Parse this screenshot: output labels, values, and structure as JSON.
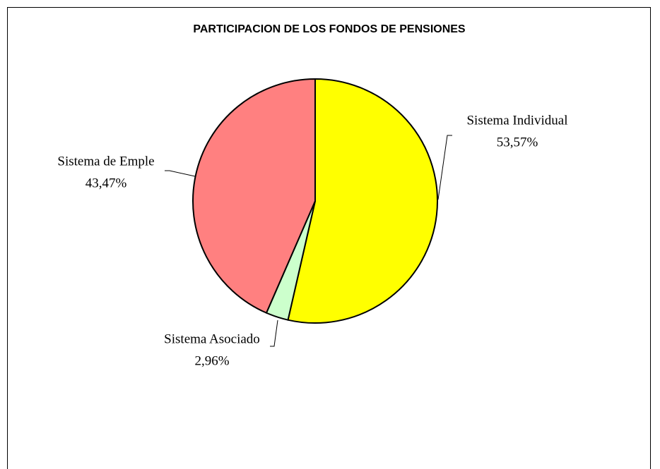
{
  "chart_data": {
    "type": "pie",
    "title": "PARTICIPACION DE LOS FONDOS DE PENSIONES",
    "categories": [
      "Sistema Individual",
      "Sistema Asociado",
      "Sistema de Emple"
    ],
    "values": [
      53.57,
      2.96,
      43.47
    ],
    "value_labels": [
      "53,57%",
      "2,96%",
      "43,47%"
    ],
    "colors": [
      "#ffff00",
      "#ccffcc",
      "#ff8080"
    ]
  }
}
